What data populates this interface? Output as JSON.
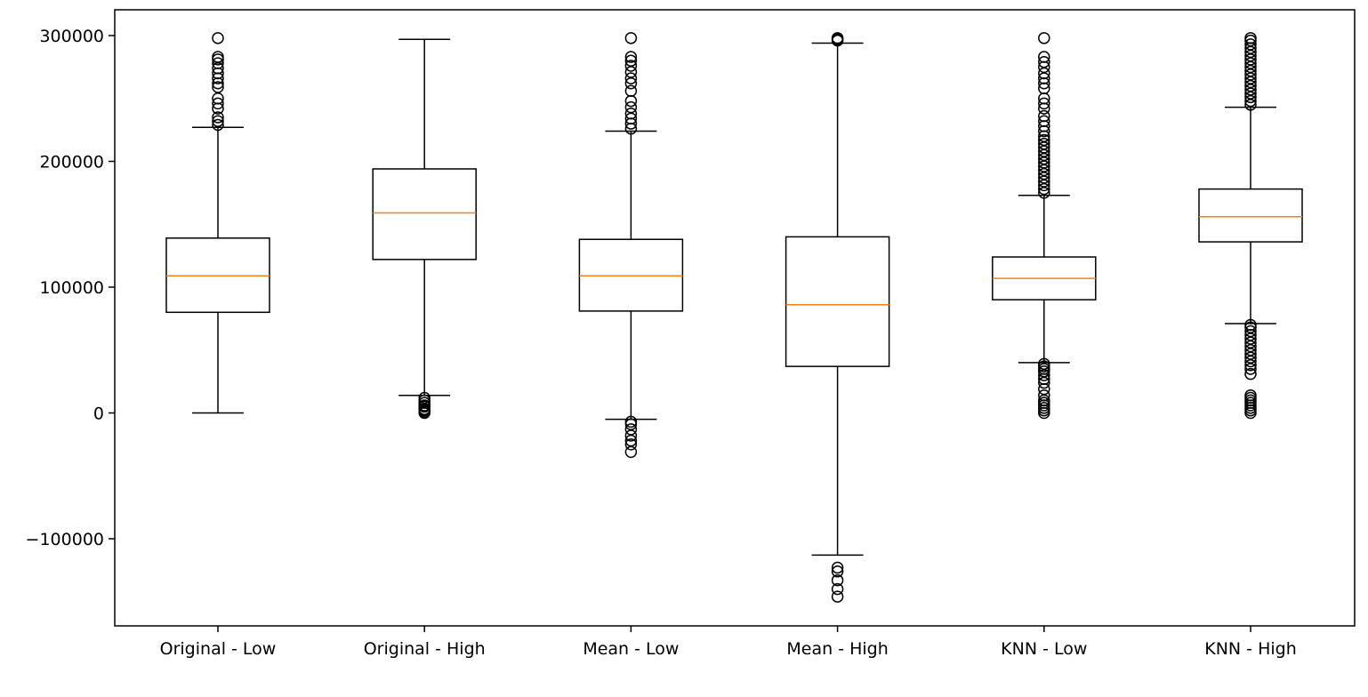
{
  "chart_data": {
    "type": "box",
    "title": "",
    "xlabel": "",
    "ylabel": "",
    "ylim": [
      -170000,
      320000
    ],
    "yticks": [
      {
        "value": 300000,
        "label": "300000"
      },
      {
        "value": 200000,
        "label": "200000"
      },
      {
        "value": 100000,
        "label": "100000"
      },
      {
        "value": 0,
        "label": "0"
      },
      {
        "value": -100000,
        "label": "−100000"
      }
    ],
    "grid": false,
    "colors": {
      "box": "#000000",
      "median": "#ff7f0e",
      "flier": "#000000"
    },
    "categories": [
      "Original - Low",
      "Original - High",
      "Mean - Low",
      "Mean - High",
      "KNN - Low",
      "KNN - High"
    ],
    "boxes": [
      {
        "label": "Original - Low",
        "whisker_low": 0,
        "q1": 80000,
        "median": 109000,
        "q3": 139000,
        "whisker_high": 227000,
        "fliers": [
          229000,
          232000,
          235000,
          242000,
          246000,
          250000,
          259000,
          262000,
          266000,
          270000,
          274000,
          278000,
          281000,
          283000,
          298000
        ]
      },
      {
        "label": "Original - High",
        "whisker_low": 14000,
        "q1": 122000,
        "median": 159000,
        "q3": 194000,
        "whisker_high": 297000,
        "fliers": [
          0,
          1000,
          2000,
          3000,
          5000,
          6000,
          8000,
          10000,
          12000
        ]
      },
      {
        "label": "Mean - Low",
        "whisker_low": -5000,
        "q1": 81000,
        "median": 109000,
        "q3": 138000,
        "whisker_high": 224000,
        "fliers": [
          -31000,
          -25000,
          -22000,
          -18000,
          -13000,
          -9000,
          -7000,
          226000,
          230000,
          234000,
          238000,
          243000,
          248000,
          256000,
          262000,
          266000,
          271000,
          276000,
          280000,
          283000,
          298000
        ]
      },
      {
        "label": "Mean - High",
        "whisker_low": -113000,
        "q1": 37000,
        "median": 86000,
        "q3": 140000,
        "whisker_high": 294000,
        "fliers": [
          -146000,
          -140000,
          -133000,
          -126000,
          -123000,
          296000,
          297000,
          298000
        ]
      },
      {
        "label": "KNN - Low",
        "whisker_low": 40000,
        "q1": 90000,
        "median": 107000,
        "q3": 124000,
        "whisker_high": 173000,
        "fliers": [
          0,
          2000,
          4000,
          6000,
          8000,
          10000,
          14000,
          19000,
          24000,
          27000,
          30000,
          33000,
          35000,
          37000,
          39000,
          175000,
          178000,
          181000,
          184000,
          187000,
          190000,
          193000,
          196000,
          199000,
          202000,
          205000,
          208000,
          211000,
          214000,
          217000,
          220000,
          224000,
          228000,
          232000,
          236000,
          242000,
          246000,
          250000,
          258000,
          262000,
          266000,
          270000,
          275000,
          279000,
          283000,
          298000
        ]
      },
      {
        "label": "KNN - High",
        "whisker_low": 71000,
        "q1": 136000,
        "median": 156000,
        "q3": 178000,
        "whisker_high": 243000,
        "fliers": [
          0,
          2000,
          4000,
          6000,
          8000,
          10000,
          12000,
          14000,
          31000,
          35000,
          38000,
          41000,
          44000,
          47000,
          50000,
          53000,
          56000,
          59000,
          62000,
          65000,
          68000,
          70000,
          245000,
          248000,
          251000,
          254000,
          257000,
          260000,
          263000,
          266000,
          269000,
          272000,
          275000,
          278000,
          281000,
          284000,
          287000,
          290000,
          293000,
          296000,
          298000
        ]
      }
    ]
  }
}
